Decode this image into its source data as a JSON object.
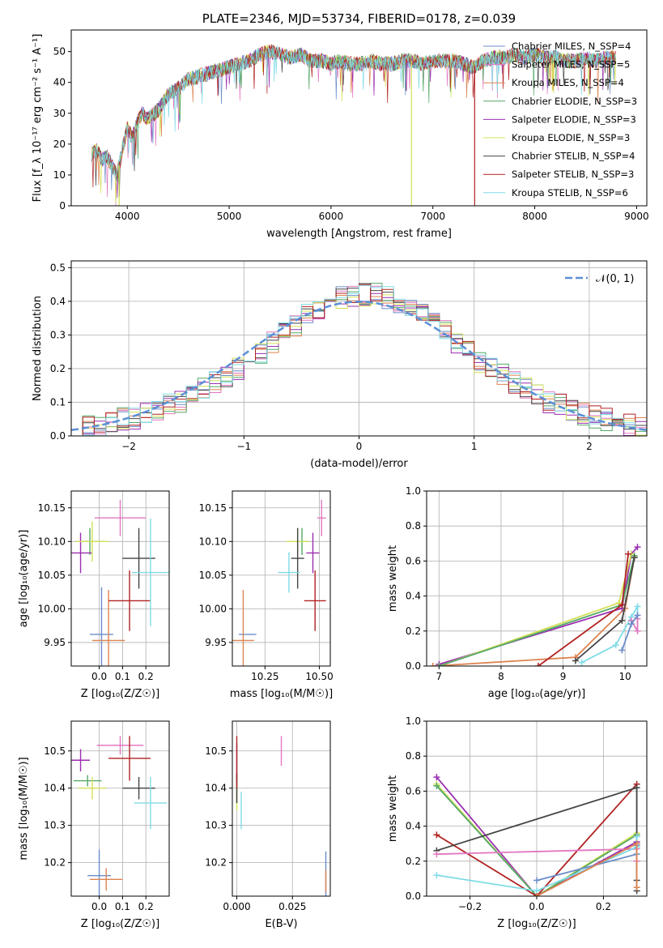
{
  "colors": {
    "spectra": [
      "#6a8dc8",
      "#e377c2",
      "#dd8452",
      "#55a868",
      "#9b2fb0",
      "#d4e157",
      "#444444",
      "#b22222",
      "#7fdbe6"
    ],
    "grid": "#b0b0b0",
    "normal_fit": "#5b8fd6"
  },
  "chart_data": [
    {
      "id": "spectrum",
      "type": "line",
      "title": "PLATE=2346, MJD=53734, FIBERID=0178, z=0.039",
      "xlabel": "wavelength [Angstrom, rest frame]",
      "ylabel": "Flux [f_λ 10⁻¹⁷ erg cm⁻² s⁻¹ A⁻¹]",
      "xlim": [
        3450,
        9100
      ],
      "ylim": [
        0,
        57
      ],
      "xticks": [
        4000,
        5000,
        6000,
        7000,
        8000,
        9000
      ],
      "yticks": [
        0,
        10,
        20,
        30,
        40,
        50
      ],
      "grid": false,
      "legend_position": "top-right",
      "flux_envelope": {
        "x": [
          3650,
          3700,
          3750,
          3800,
          3850,
          3900,
          3950,
          4000,
          4050,
          4100,
          4150,
          4200,
          4300,
          4400,
          4500,
          4600,
          4700,
          4800,
          4900,
          5000,
          5100,
          5200,
          5300,
          5400,
          5500,
          5600,
          5700,
          5800,
          5900,
          6000,
          6100,
          6200,
          6300,
          6400,
          6500,
          6600,
          6700,
          6800,
          6900,
          7000,
          7100,
          7200,
          7300,
          7400,
          7500,
          7600,
          7700,
          7800,
          7900,
          8000,
          8100,
          8200,
          8300,
          8400,
          8500,
          8600,
          8700,
          8800
        ],
        "y": [
          17,
          18,
          15,
          16,
          13,
          10,
          18,
          25,
          22,
          27,
          30,
          28,
          31,
          36,
          38,
          41,
          42,
          43,
          44,
          45,
          46,
          47,
          49,
          50,
          49,
          48,
          49,
          47,
          47,
          46,
          47,
          46,
          46,
          47,
          46,
          46,
          47,
          47,
          46,
          47,
          47,
          47,
          46,
          45,
          47,
          48,
          48,
          49,
          48,
          49,
          48,
          48,
          47,
          47,
          48,
          47,
          48,
          48
        ]
      },
      "series": [
        {
          "name": "Chabrier MILES, N_SSP=4",
          "color": "#6a8dc8"
        },
        {
          "name": "Salpeter MILES, N_SSP=5",
          "color": "#e377c2"
        },
        {
          "name": "Kroupa MILES, N_SSP=4",
          "color": "#dd8452"
        },
        {
          "name": "Chabrier ELODIE, N_SSP=3",
          "color": "#55a868"
        },
        {
          "name": "Salpeter ELODIE, N_SSP=3",
          "color": "#9b2fb0"
        },
        {
          "name": "Kroupa ELODIE, N_SSP=3",
          "color": "#d4e157"
        },
        {
          "name": "Chabrier STELIB, N_SSP=4",
          "color": "#444444"
        },
        {
          "name": "Salpeter STELIB, N_SSP=3",
          "color": "#b22222"
        },
        {
          "name": "Kroupa STELIB, N_SSP=6",
          "color": "#7fdbe6"
        }
      ],
      "drops": [
        3920,
        6790,
        7410
      ]
    },
    {
      "id": "residuals",
      "type": "histogram",
      "xlabel": "(data-model)/error",
      "ylabel": "Normed distribution",
      "xlim": [
        -2.5,
        2.5
      ],
      "ylim": [
        0,
        0.52
      ],
      "xticks": [
        -2,
        -1,
        0,
        1,
        2
      ],
      "yticks": [
        0.0,
        0.1,
        0.2,
        0.3,
        0.4,
        0.5
      ],
      "grid": true,
      "legend": "𝒩(0, 1)",
      "legend_position": "top-right",
      "bins": [
        -2.5,
        -2.4,
        -2.3,
        -2.2,
        -2.1,
        -2.0,
        -1.9,
        -1.8,
        -1.7,
        -1.6,
        -1.5,
        -1.4,
        -1.3,
        -1.2,
        -1.1,
        -1.0,
        -0.9,
        -0.8,
        -0.7,
        -0.6,
        -0.5,
        -0.4,
        -0.3,
        -0.2,
        -0.1,
        0.0,
        0.1,
        0.2,
        0.3,
        0.4,
        0.5,
        0.6,
        0.7,
        0.8,
        0.9,
        1.0,
        1.1,
        1.2,
        1.3,
        1.4,
        1.5,
        1.6,
        1.7,
        1.8,
        1.9,
        2.0,
        2.1,
        2.2,
        2.3,
        2.4
      ],
      "approx_density": [
        0.02,
        0.025,
        0.03,
        0.04,
        0.05,
        0.055,
        0.065,
        0.075,
        0.09,
        0.1,
        0.12,
        0.14,
        0.16,
        0.18,
        0.2,
        0.22,
        0.25,
        0.28,
        0.31,
        0.33,
        0.36,
        0.38,
        0.4,
        0.41,
        0.42,
        0.42,
        0.42,
        0.41,
        0.4,
        0.38,
        0.36,
        0.33,
        0.31,
        0.28,
        0.25,
        0.22,
        0.2,
        0.18,
        0.16,
        0.14,
        0.12,
        0.1,
        0.09,
        0.075,
        0.065,
        0.055,
        0.05,
        0.04,
        0.03,
        0.025
      ]
    },
    {
      "id": "age_vs_Z",
      "type": "errorbar",
      "xlabel": "Z [log₁₀(Z/Z☉)]",
      "ylabel": "age  [log₁₀(age/yr)]",
      "xlim": [
        -0.12,
        0.3
      ],
      "ylim": [
        9.915,
        10.175
      ],
      "xticks": [
        0.0,
        0.1,
        0.2
      ],
      "yticks": [
        9.95,
        10.0,
        10.05,
        10.1,
        10.15
      ],
      "grid": true,
      "points": [
        {
          "x": 0.01,
          "y": 9.962,
          "xerr": 0.05,
          "yerr": 0.07,
          "c": 0
        },
        {
          "x": 0.09,
          "y": 10.135,
          "xerr": 0.11,
          "yerr": 0.027,
          "c": 1
        },
        {
          "x": 0.04,
          "y": 9.953,
          "xerr": 0.07,
          "yerr": 0.075,
          "c": 2
        },
        {
          "x": -0.04,
          "y": 10.1,
          "xerr": 0.06,
          "yerr": 0.02,
          "c": 3
        },
        {
          "x": -0.08,
          "y": 10.083,
          "xerr": 0.05,
          "yerr": 0.03,
          "c": 4
        },
        {
          "x": -0.03,
          "y": 10.1,
          "xerr": 0.07,
          "yerr": 0.03,
          "c": 5
        },
        {
          "x": 0.17,
          "y": 10.075,
          "xerr": 0.07,
          "yerr": 0.045,
          "c": 6
        },
        {
          "x": 0.13,
          "y": 10.012,
          "xerr": 0.09,
          "yerr": 0.045,
          "c": 7
        },
        {
          "x": 0.22,
          "y": 10.054,
          "xerr": 0.08,
          "yerr": 0.08,
          "c": 8
        }
      ]
    },
    {
      "id": "age_vs_mass",
      "type": "errorbar",
      "xlabel": "mass [log₁₀(M/M☉)]",
      "xlim": [
        10.1,
        10.55
      ],
      "ylim": [
        9.915,
        10.175
      ],
      "xticks": [
        10.25,
        10.5
      ],
      "yticks": [
        9.95,
        10.0,
        10.05,
        10.1,
        10.15
      ],
      "grid": true,
      "points": [
        {
          "x": 10.17,
          "y": 9.962,
          "xerr": 0.04,
          "yerr": 0.0,
          "c": 0
        },
        {
          "x": 10.51,
          "y": 10.135,
          "xerr": 0.02,
          "yerr": 0.027,
          "c": 1
        },
        {
          "x": 10.15,
          "y": 9.953,
          "xerr": 0.05,
          "yerr": 0.075,
          "c": 2
        },
        {
          "x": 10.42,
          "y": 10.1,
          "xerr": 0.03,
          "yerr": 0.02,
          "c": 3
        },
        {
          "x": 10.47,
          "y": 10.083,
          "xerr": 0.03,
          "yerr": 0.03,
          "c": 4
        },
        {
          "x": 10.4,
          "y": 10.1,
          "xerr": 0.05,
          "yerr": 0.02,
          "c": 5
        },
        {
          "x": 10.4,
          "y": 10.075,
          "xerr": 0.03,
          "yerr": 0.045,
          "c": 6
        },
        {
          "x": 10.48,
          "y": 10.012,
          "xerr": 0.05,
          "yerr": 0.045,
          "c": 7
        },
        {
          "x": 10.36,
          "y": 10.054,
          "xerr": 0.05,
          "yerr": 0.03,
          "c": 8
        }
      ]
    },
    {
      "id": "weight_vs_age",
      "type": "line",
      "xlabel": "age  [log₁₀(age/yr)]",
      "ylabel": "mass weight",
      "xlim": [
        6.8,
        10.35
      ],
      "ylim": [
        0,
        1.0
      ],
      "xticks": [
        7,
        8,
        9,
        10
      ],
      "yticks": [
        0.0,
        0.2,
        0.4,
        0.6,
        0.8,
        1.0
      ],
      "grid": true,
      "series": [
        {
          "c": 2,
          "x": [
            6.9,
            9.2,
            10.0,
            10.15
          ],
          "y": [
            0.0,
            0.05,
            0.33,
            0.62
          ]
        },
        {
          "c": 4,
          "x": [
            7.0,
            9.95,
            10.1,
            10.2
          ],
          "y": [
            0.01,
            0.33,
            0.64,
            0.68
          ]
        },
        {
          "c": 5,
          "x": [
            7.0,
            9.9,
            10.1
          ],
          "y": [
            0.0,
            0.36,
            0.64
          ]
        },
        {
          "c": 3,
          "x": [
            7.0,
            9.95,
            10.15
          ],
          "y": [
            0.0,
            0.35,
            0.63
          ]
        },
        {
          "c": 6,
          "x": [
            9.2,
            9.95,
            10.15
          ],
          "y": [
            0.03,
            0.26,
            0.62
          ]
        },
        {
          "c": 7,
          "x": [
            8.6,
            9.95,
            10.05
          ],
          "y": [
            0.0,
            0.35,
            0.64
          ]
        },
        {
          "c": 8,
          "x": [
            9.3,
            9.85,
            10.1,
            10.2,
            10.2
          ],
          "y": [
            0.02,
            0.12,
            0.28,
            0.34,
            0.2
          ]
        },
        {
          "c": 1,
          "x": [
            10.1,
            10.2,
            10.2
          ],
          "y": [
            0.26,
            0.2,
            0.27
          ]
        },
        {
          "c": 0,
          "x": [
            9.95,
            10.1,
            10.2
          ],
          "y": [
            0.09,
            0.24,
            0.29
          ]
        }
      ]
    },
    {
      "id": "mass_vs_Z",
      "type": "errorbar",
      "xlabel": "Z [log₁₀(Z/Z☉)]",
      "ylabel": "mass [log₁₀(M/M☉)]",
      "xlim": [
        -0.12,
        0.3
      ],
      "ylim": [
        10.11,
        10.58
      ],
      "xticks": [
        0.0,
        0.1,
        0.2
      ],
      "yticks": [
        10.2,
        10.3,
        10.4,
        10.5
      ],
      "grid": true,
      "points": [
        {
          "x": 0.0,
          "y": 10.165,
          "xerr": 0.05,
          "yerr": 0.07,
          "c": 0
        },
        {
          "x": 0.09,
          "y": 10.515,
          "xerr": 0.1,
          "yerr": 0.025,
          "c": 1
        },
        {
          "x": 0.03,
          "y": 10.155,
          "xerr": 0.07,
          "yerr": 0.03,
          "c": 2
        },
        {
          "x": -0.05,
          "y": 10.42,
          "xerr": 0.06,
          "yerr": 0.015,
          "c": 3
        },
        {
          "x": -0.08,
          "y": 10.475,
          "xerr": 0.04,
          "yerr": 0.03,
          "c": 4
        },
        {
          "x": -0.03,
          "y": 10.4,
          "xerr": 0.06,
          "yerr": 0.03,
          "c": 5
        },
        {
          "x": 0.17,
          "y": 10.4,
          "xerr": 0.07,
          "yerr": 0.03,
          "c": 6
        },
        {
          "x": 0.13,
          "y": 10.48,
          "xerr": 0.09,
          "yerr": 0.06,
          "c": 7
        },
        {
          "x": 0.22,
          "y": 10.36,
          "xerr": 0.07,
          "yerr": 0.07,
          "c": 8
        }
      ]
    },
    {
      "id": "mass_vs_EBV",
      "type": "errorbar",
      "xlabel": "E(B-V)",
      "xlim": [
        -0.002,
        0.042
      ],
      "ylim": [
        10.11,
        10.58
      ],
      "xticks": [
        0.0,
        0.025
      ],
      "yticks": [
        10.2,
        10.3,
        10.4,
        10.5
      ],
      "grid": true,
      "points": [
        {
          "x": 0.04,
          "y": 10.17,
          "xerr": 0,
          "yerr": 0.06,
          "c": 0
        },
        {
          "x": 0.02,
          "y": 10.5,
          "xerr": 0,
          "yerr": 0.04,
          "c": 1
        },
        {
          "x": 0.04,
          "y": 10.15,
          "xerr": 0,
          "yerr": 0.03,
          "c": 2
        },
        {
          "x": 0.0,
          "y": 10.4,
          "xerr": 0,
          "yerr": 0.04,
          "c": 3
        },
        {
          "x": 0.0,
          "y": 10.47,
          "xerr": 0,
          "yerr": 0.05,
          "c": 4
        },
        {
          "x": 0.0,
          "y": 10.37,
          "xerr": 0,
          "yerr": 0.03,
          "c": 5
        },
        {
          "x": 0.0,
          "y": 10.4,
          "xerr": 0,
          "yerr": 0.04,
          "c": 6
        },
        {
          "x": 0.0,
          "y": 10.47,
          "xerr": 0,
          "yerr": 0.07,
          "c": 7
        },
        {
          "x": 0.002,
          "y": 10.34,
          "xerr": 0,
          "yerr": 0.05,
          "c": 8
        }
      ]
    },
    {
      "id": "weight_vs_Z",
      "type": "line",
      "xlabel": "Z [log₁₀(Z/Z☉)]",
      "ylabel": "mass weight",
      "xlim": [
        -0.33,
        0.33
      ],
      "ylim": [
        0,
        1.0
      ],
      "xticks": [
        -0.2,
        0.0,
        0.2
      ],
      "yticks": [
        0.0,
        0.2,
        0.4,
        0.6,
        0.8,
        1.0
      ],
      "grid": true,
      "series": [
        {
          "c": 4,
          "x": [
            -0.3,
            0.0,
            0.3
          ],
          "y": [
            0.68,
            0.0,
            0.31
          ]
        },
        {
          "c": 5,
          "x": [
            -0.3,
            0.0,
            0.3
          ],
          "y": [
            0.64,
            0.0,
            0.36
          ]
        },
        {
          "c": 3,
          "x": [
            -0.3,
            0.0,
            0.3
          ],
          "y": [
            0.63,
            0.0,
            0.35
          ]
        },
        {
          "c": 7,
          "x": [
            -0.3,
            0.0,
            0.3
          ],
          "y": [
            0.35,
            0.0,
            0.64
          ]
        },
        {
          "c": 6,
          "x": [
            -0.3,
            0.3,
            0.3,
            0.3
          ],
          "y": [
            0.26,
            0.62,
            0.09,
            0.03
          ]
        },
        {
          "c": 1,
          "x": [
            -0.3,
            0.3,
            0.3
          ],
          "y": [
            0.24,
            0.27,
            0.2
          ]
        },
        {
          "c": 8,
          "x": [
            -0.3,
            0.0,
            0.3,
            0.3
          ],
          "y": [
            0.12,
            0.03,
            0.28,
            0.34
          ]
        },
        {
          "c": 0,
          "x": [
            0.0,
            0.3,
            0.3
          ],
          "y": [
            0.09,
            0.24,
            0.29
          ]
        },
        {
          "c": 2,
          "x": [
            0.0,
            0.3,
            0.3
          ],
          "y": [
            0.0,
            0.3,
            0.05
          ]
        }
      ]
    }
  ]
}
